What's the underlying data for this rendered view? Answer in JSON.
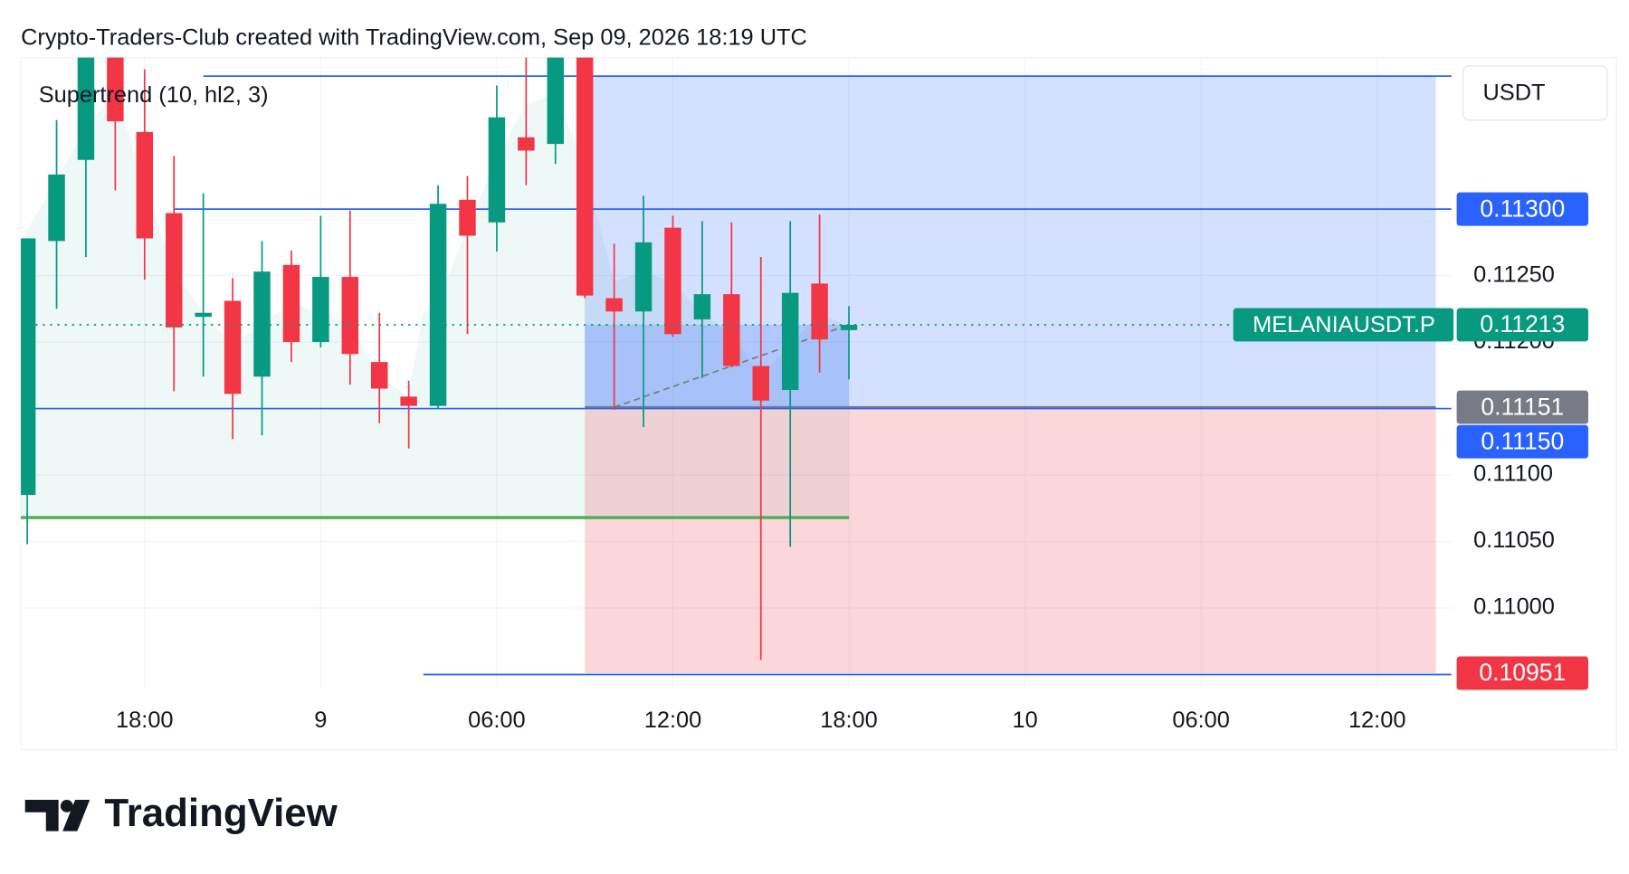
{
  "header": "Crypto-Traders-Club created with TradingView.com, Sep 09, 2026 18:19 UTC",
  "brand": "TradingView",
  "chart_data": {
    "type": "candlestick",
    "indicator": "Supertrend (10, hl2, 3)",
    "currency": "USDT",
    "up_color": "#089981",
    "down_color": "#f23645",
    "grid": true,
    "x": [
      "2026-09-08T14:00",
      "2026-09-08T15:00",
      "2026-09-08T16:00",
      "2026-09-08T17:00",
      "2026-09-08T18:00",
      "2026-09-08T19:00",
      "2026-09-08T20:00",
      "2026-09-08T21:00",
      "2026-09-08T22:00",
      "2026-09-08T23:00",
      "2026-09-09T00:00",
      "2026-09-09T01:00",
      "2026-09-09T02:00",
      "2026-09-09T03:00",
      "2026-09-09T04:00",
      "2026-09-09T05:00",
      "2026-09-09T06:00",
      "2026-09-09T07:00",
      "2026-09-09T08:00",
      "2026-09-09T09:00",
      "2026-09-09T10:00",
      "2026-09-09T11:00",
      "2026-09-09T12:00",
      "2026-09-09T13:00",
      "2026-09-09T14:00",
      "2026-09-09T15:00",
      "2026-09-09T16:00",
      "2026-09-09T17:00",
      "2026-09-09T18:00"
    ],
    "open": [
      0.11085,
      0.11276,
      0.11337,
      0.1143,
      0.11358,
      0.11297,
      0.11219,
      0.11231,
      0.11174,
      0.11258,
      0.112,
      0.11249,
      0.11185,
      0.11159,
      0.11152,
      0.11307,
      0.1129,
      0.11354,
      0.11349,
      0.1143,
      0.11233,
      0.11223,
      0.11286,
      0.11217,
      0.11236,
      0.11182,
      0.11164,
      0.11244,
      0.11209
    ],
    "high": [
      0.11278,
      0.11367,
      0.1146,
      0.1145,
      0.11405,
      0.1134,
      0.11312,
      0.11248,
      0.11276,
      0.11269,
      0.11295,
      0.11299,
      0.11222,
      0.11171,
      0.11318,
      0.11325,
      0.11393,
      0.1143,
      0.1145,
      0.1145,
      0.11274,
      0.1131,
      0.11295,
      0.11291,
      0.1129,
      0.11264,
      0.11291,
      0.11296,
      0.11227
    ],
    "low": [
      0.11048,
      0.11225,
      0.11264,
      0.11314,
      0.11247,
      0.11163,
      0.11174,
      0.11127,
      0.1113,
      0.11185,
      0.11196,
      0.11168,
      0.11139,
      0.1112,
      0.1115,
      0.11206,
      0.11268,
      0.11318,
      0.11334,
      0.11233,
      0.11149,
      0.11136,
      0.11204,
      0.11173,
      0.11181,
      0.10961,
      0.11046,
      0.11177,
      0.11172
    ],
    "close": [
      0.11278,
      0.11326,
      0.1143,
      0.11366,
      0.11278,
      0.11211,
      0.11222,
      0.11161,
      0.11253,
      0.112,
      0.11249,
      0.11191,
      0.11165,
      0.11152,
      0.11304,
      0.1128,
      0.11369,
      0.11344,
      0.1143,
      0.11235,
      0.11223,
      0.11275,
      0.11206,
      0.11236,
      0.11182,
      0.11156,
      0.11237,
      0.11202,
      0.11213
    ],
    "xlim": [
      "2026-09-08T13:47",
      "2026-09-10T14:32"
    ],
    "xticks": [
      {
        "value": "2026-09-08T18:00",
        "label": "18:00"
      },
      {
        "value": "2026-09-09T00:00",
        "label": "9"
      },
      {
        "value": "2026-09-09T06:00",
        "label": "06:00"
      },
      {
        "value": "2026-09-09T12:00",
        "label": "12:00"
      },
      {
        "value": "2026-09-09T18:00",
        "label": "18:00"
      },
      {
        "value": "2026-09-10T00:00",
        "label": "10"
      },
      {
        "value": "2026-09-10T06:00",
        "label": "06:00"
      },
      {
        "value": "2026-09-10T12:00",
        "label": "12:00"
      }
    ],
    "ylim": [
      0.10939,
      0.11414
    ],
    "yticks": [
      {
        "value": 0.11,
        "label": "0.11000"
      },
      {
        "value": 0.1105,
        "label": "0.11050"
      },
      {
        "value": 0.111,
        "label": "0.11100"
      },
      {
        "value": 0.112,
        "label": "0.11200"
      },
      {
        "value": 0.1125,
        "label": "0.11250"
      }
    ],
    "lines": [
      {
        "value": 0.114,
        "from": "2026-09-08T20:00",
        "color": "#2962ff"
      },
      {
        "value": 0.113,
        "from": "2026-09-08T19:00",
        "color": "#2962ff"
      },
      {
        "value": 0.1115,
        "from": "2026-09-08T13:47",
        "color": "#2962ff"
      },
      {
        "value": 0.1095,
        "from": "2026-09-09T03:30",
        "color": "#2962ff"
      },
      {
        "value": 0.11068,
        "from": "2026-09-08T13:47",
        "to": "2026-09-09T18:00",
        "color": "#4caf50"
      }
    ],
    "position": {
      "entry": 0.11151,
      "target": 0.114,
      "stop": 0.10951,
      "from": "2026-09-09T09:00",
      "to": "2026-09-10T14:00"
    },
    "levels": [
      {
        "value": 0.113,
        "label": "0.11300",
        "color": "#2962ff"
      },
      {
        "value": 0.11213,
        "label": "0.11213",
        "color": "#089981",
        "symbol": "MELANIAUSDT.P"
      },
      {
        "value": 0.11151,
        "label": "0.11151",
        "color": "#787b86"
      },
      {
        "value": 0.1115,
        "label": "0.11150",
        "color": "#2962ff"
      },
      {
        "value": 0.10951,
        "label": "0.10951",
        "color": "#f23645"
      }
    ]
  }
}
